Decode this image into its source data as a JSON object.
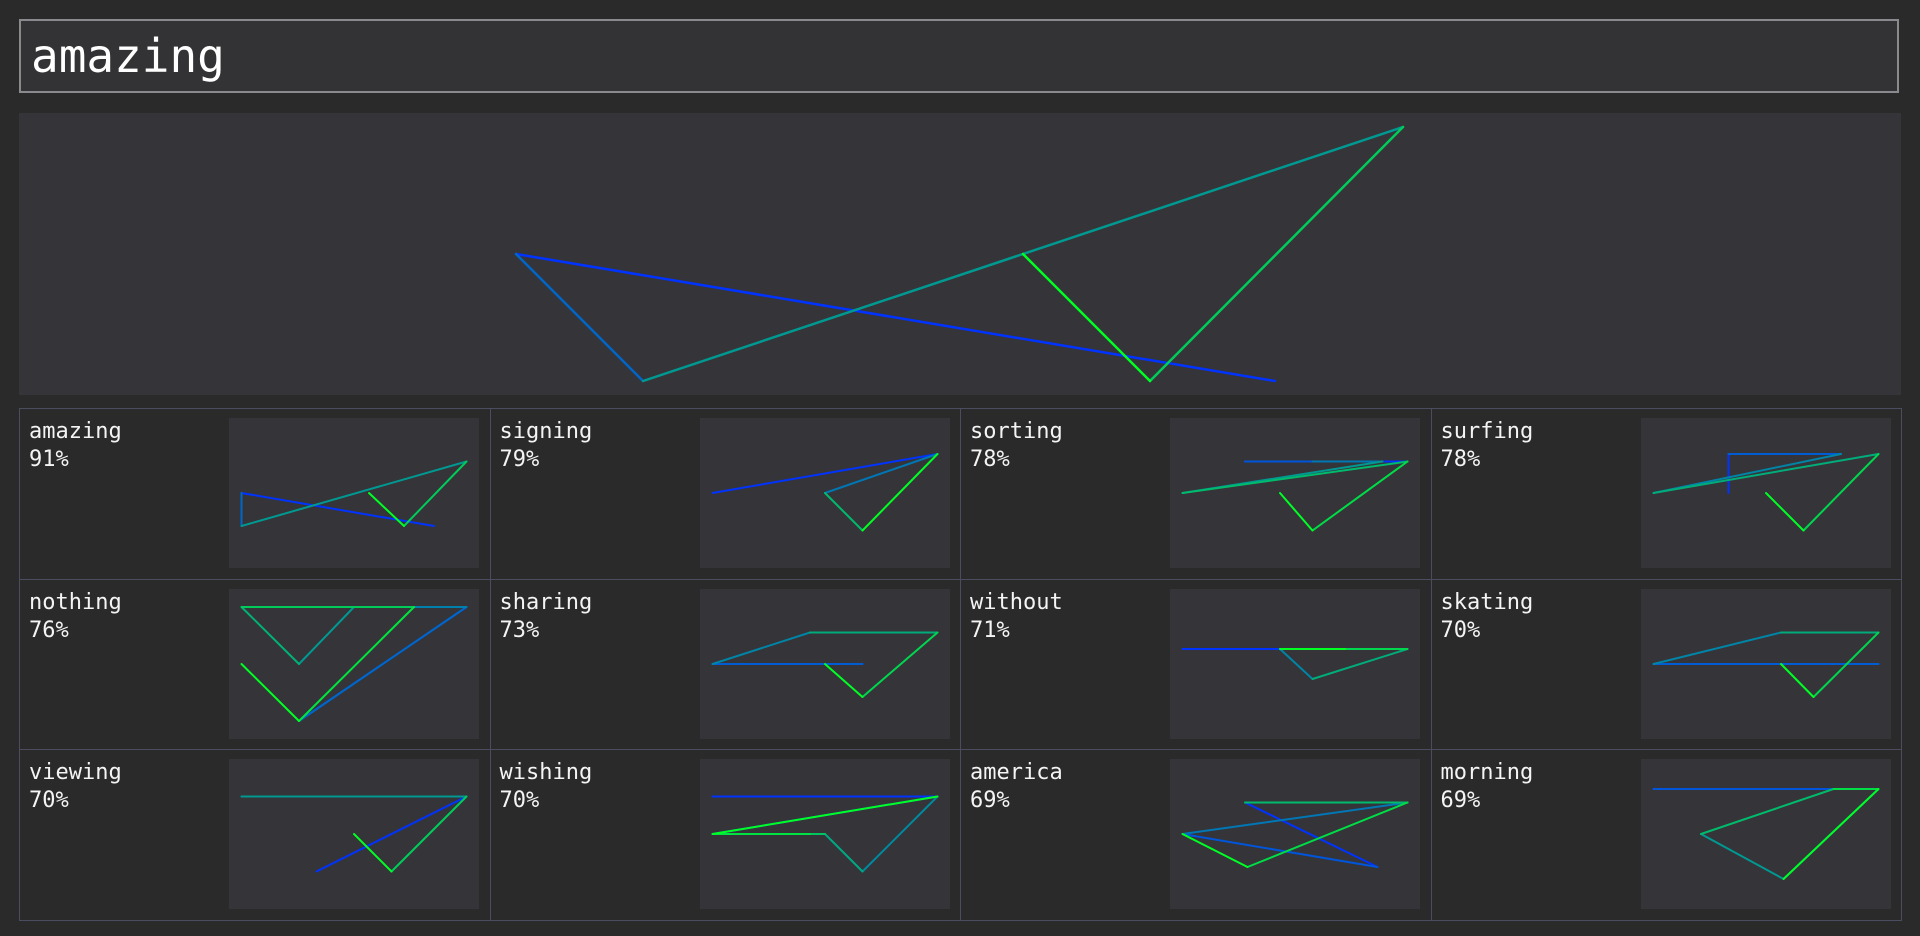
{
  "search": {
    "value": "amazing"
  },
  "preview": {
    "word": "amazing"
  },
  "results": [
    {
      "word": "amazing",
      "score": "91%"
    },
    {
      "word": "signing",
      "score": "79%"
    },
    {
      "word": "sorting",
      "score": "78%"
    },
    {
      "word": "surfing",
      "score": "78%"
    },
    {
      "word": "nothing",
      "score": "76%"
    },
    {
      "word": "sharing",
      "score": "73%"
    },
    {
      "word": "without",
      "score": "71%"
    },
    {
      "word": "skating",
      "score": "70%"
    },
    {
      "word": "viewing",
      "score": "70%"
    },
    {
      "word": "wishing",
      "score": "70%"
    },
    {
      "word": "america",
      "score": "69%"
    },
    {
      "word": "morning",
      "score": "69%"
    }
  ],
  "colors": {
    "stroke_start": "#0033ff",
    "stroke_end": "#00ff22",
    "panel_bg": "#343439",
    "page_bg": "#2a2a2a",
    "grid_border": "#4c4c60"
  }
}
